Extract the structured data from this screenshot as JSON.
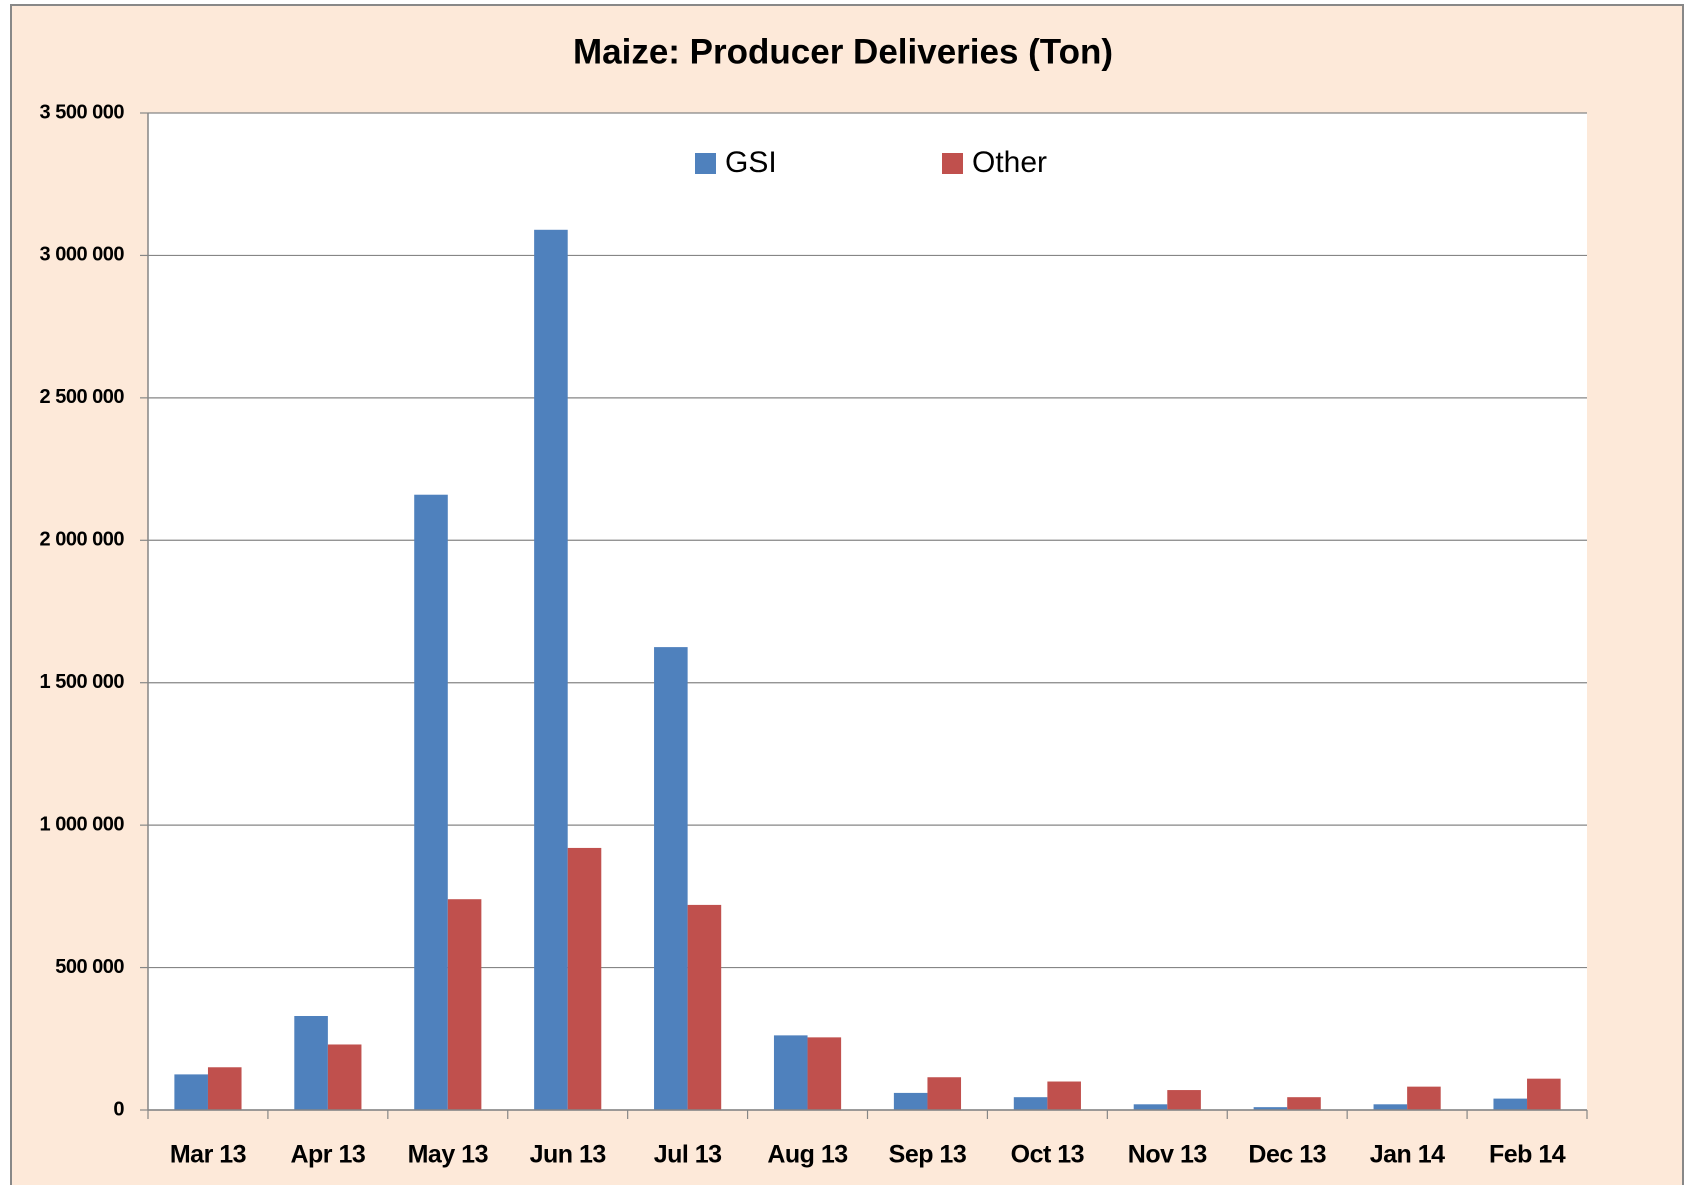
{
  "chart_data": {
    "type": "bar",
    "title": "Maize: Producer Deliveries (Ton)",
    "categories": [
      "Mar 13",
      "Apr 13",
      "May 13",
      "Jun 13",
      "Jul 13",
      "Aug 13",
      "Sep 13",
      "Oct 13",
      "Nov 13",
      "Dec 13",
      "Jan 14",
      "Feb 14"
    ],
    "series": [
      {
        "name": "GSI",
        "color": "#4f81bd",
        "values": [
          125000,
          330000,
          2160000,
          3090000,
          1625000,
          262000,
          60000,
          45000,
          20000,
          10000,
          20000,
          40000
        ]
      },
      {
        "name": "Other",
        "color": "#c0504d",
        "values": [
          150000,
          230000,
          740000,
          920000,
          720000,
          255000,
          115000,
          100000,
          70000,
          45000,
          82000,
          110000
        ]
      }
    ],
    "ylim": [
      0,
      3500000
    ],
    "yticks": [
      0,
      {
        "value": 500000,
        "label": "500 000"
      },
      {
        "value": 1000000,
        "label": "1 000 000"
      },
      {
        "value": 1500000,
        "label": "1 500 000"
      },
      {
        "value": 2000000,
        "label": "2 000 000"
      },
      {
        "value": 2500000,
        "label": "2 500 000"
      },
      {
        "value": 3000000,
        "label": "3 000 000"
      },
      {
        "value": 3500000,
        "label": "3 500 000"
      }
    ],
    "grid": true,
    "legend": "top"
  }
}
